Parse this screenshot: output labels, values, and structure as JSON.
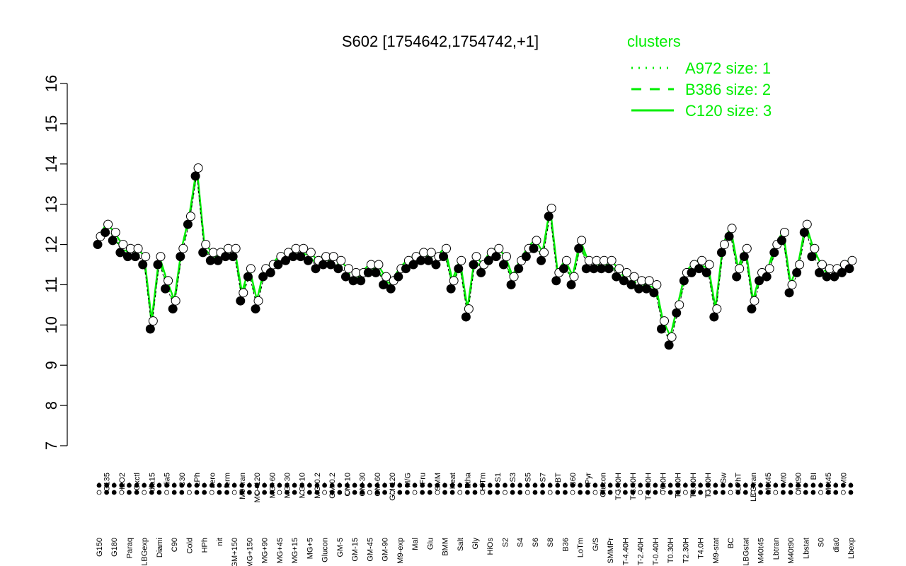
{
  "chart_data": {
    "type": "line",
    "title": "S602 [1754642,1754742,+1]",
    "xlabel": "",
    "ylabel": "",
    "ylim": [
      7,
      16
    ],
    "yticks": [
      7,
      8,
      9,
      10,
      11,
      12,
      13,
      14,
      15,
      16
    ],
    "xlabels": [
      "G150",
      "G135",
      "G180",
      "H2O2",
      "Paraq",
      "Oxctl",
      "LBGexp",
      "dia15",
      "Diami",
      "dia5",
      "C90",
      "C30",
      "Cold",
      "LPh",
      "HPh",
      "aero",
      "nit",
      "ferm",
      "GM+150",
      "M9-tran",
      "MG+150",
      "MG+120",
      "MG+90",
      "MG+60",
      "MG+45",
      "MG+30",
      "MG+15",
      "MG+10",
      "MG+5",
      "MG-0.2",
      "Glucon",
      "GM-0.2",
      "GM-5",
      "GM-10",
      "GM-15",
      "GM-30",
      "GM-45",
      "GM-60",
      "GM-90",
      "GM-120",
      "M9-exp",
      "M/G",
      "Mal",
      "Fru",
      "Glu",
      "SMM",
      "BMM",
      "Heat",
      "Salt",
      "Etha",
      "Gly",
      "HiTm",
      "HiOs",
      "S1",
      "S2",
      "S3",
      "S4",
      "S5",
      "S6",
      "S7",
      "S8",
      "BT",
      "B36",
      "B60",
      "LoTm",
      "Pyr",
      "G/S",
      "Glucon",
      "SMMPr",
      "T-5.40H",
      "T-4.40H",
      "T-3.40H",
      "T-2.40H",
      "T-1.40H",
      "T-0.40H",
      "T0.0H",
      "T0.30H",
      "T1.30H",
      "T2.30H",
      "T3.30H",
      "T4.0H",
      "T5.30H",
      "M9-stat",
      "Sw",
      "BC",
      "LPhT",
      "LBGstat",
      "LBGtran",
      "M40t45",
      "M0t45",
      "Lbtran",
      "Mt0",
      "M40t90",
      "M0t90",
      "Lbstat",
      "BI",
      "S0",
      "M0t45",
      "dia0",
      "Mt0",
      "Lbexp"
    ],
    "legend": {
      "title": "clusters",
      "position": "top-right",
      "entries": [
        {
          "label": "A972 size: 1",
          "style": "dotted"
        },
        {
          "label": "B386 size: 2",
          "style": "dashed"
        },
        {
          "label": "C120 size: 3",
          "style": "solid"
        }
      ]
    },
    "series_color": "#00ee00",
    "marker_fill_filled": "#000000",
    "marker_fill_open": "#ffffff"
  }
}
